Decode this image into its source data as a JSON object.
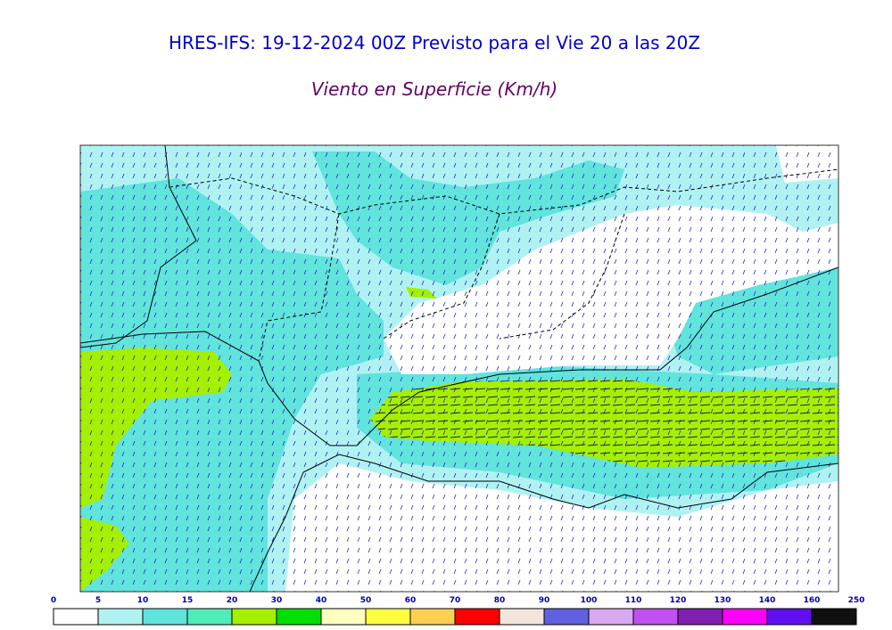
{
  "header": {
    "title": "HRES-IFS: 19-12-2024 00Z Previsto para el Vie 20 a las 20Z",
    "subtitle": "Viento en Superficie (Km/h)"
  },
  "colorbar": {
    "labels": [
      "0",
      "5",
      "10",
      "15",
      "20",
      "30",
      "40",
      "50",
      "60",
      "70",
      "80",
      "90",
      "100",
      "110",
      "120",
      "130",
      "140",
      "160",
      "250"
    ],
    "colors": [
      "#ffffff",
      "#b0f2f2",
      "#60e4dc",
      "#50ecb8",
      "#a4f000",
      "#00e000",
      "#ffffc0",
      "#ffff40",
      "#ffd050",
      "#ff0000",
      "#f2e6da",
      "#6060e0",
      "#d8a8f0",
      "#c050f0",
      "#8020b0",
      "#ff00ff",
      "#6010f0",
      "#101010"
    ]
  }
}
